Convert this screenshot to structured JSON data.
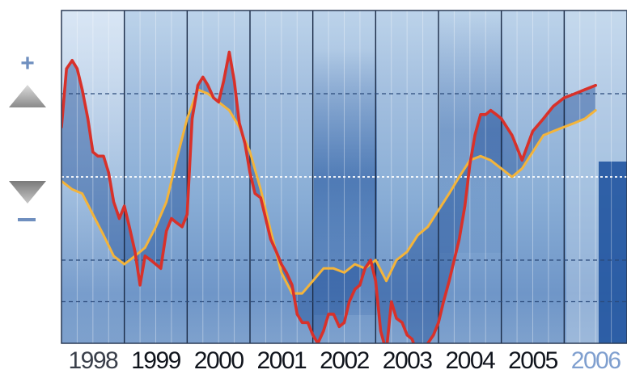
{
  "chart_data": {
    "type": "line",
    "title": "",
    "xlabel": "",
    "ylabel": "",
    "categories": [
      "1998",
      "1999",
      "2000",
      "2001",
      "2002",
      "2003",
      "2004",
      "2005",
      "2006"
    ],
    "x_range": [
      1998,
      2007
    ],
    "y_range": [
      -4,
      4
    ],
    "grid": true,
    "reference_line": 0,
    "indicator_labels": {
      "up": "+",
      "down": "–"
    },
    "series": [
      {
        "color": "#d8312a",
        "x": [
          1998.0,
          1998.08,
          1998.17,
          1998.25,
          1998.33,
          1998.42,
          1998.5,
          1998.58,
          1998.67,
          1998.75,
          1998.83,
          1998.92,
          1999.0,
          1999.08,
          1999.17,
          1999.25,
          1999.33,
          1999.42,
          1999.5,
          1999.58,
          1999.67,
          1999.75,
          1999.83,
          1999.92,
          2000.0,
          2000.08,
          2000.17,
          2000.25,
          2000.33,
          2000.42,
          2000.5,
          2000.58,
          2000.67,
          2000.75,
          2000.83,
          2000.92,
          2001.0,
          2001.08,
          2001.17,
          2001.25,
          2001.33,
          2001.42,
          2001.5,
          2001.58,
          2001.67,
          2001.75,
          2001.83,
          2001.92,
          2002.0,
          2002.08,
          2002.17,
          2002.25,
          2002.33,
          2002.42,
          2002.5,
          2002.58,
          2002.67,
          2002.75,
          2002.83,
          2002.92,
          2003.0,
          2003.08,
          2003.17,
          2003.25,
          2003.33,
          2003.42,
          2003.5,
          2003.58,
          2003.67,
          2003.75,
          2003.83,
          2003.92,
          2004.0,
          2004.08,
          2004.17,
          2004.25,
          2004.33,
          2004.42,
          2004.5,
          2004.58,
          2004.67,
          2004.75,
          2004.83,
          2004.92,
          2005.0,
          2005.17,
          2005.33,
          2005.5,
          2005.67,
          2005.83,
          2006.0,
          2006.17,
          2006.33,
          2006.5
        ],
        "y": [
          1.2,
          2.6,
          2.8,
          2.6,
          2.1,
          1.4,
          0.6,
          0.5,
          0.5,
          0.1,
          -0.6,
          -1.0,
          -0.7,
          -1.2,
          -1.8,
          -2.6,
          -1.9,
          -2.0,
          -2.1,
          -2.2,
          -1.3,
          -1.0,
          -1.1,
          -1.2,
          -0.9,
          1.4,
          2.2,
          2.4,
          2.2,
          1.9,
          1.8,
          2.3,
          3.0,
          2.3,
          1.3,
          0.8,
          0.1,
          -0.4,
          -0.5,
          -1.0,
          -1.5,
          -1.8,
          -2.1,
          -2.3,
          -2.6,
          -3.3,
          -3.5,
          -3.5,
          -3.8,
          -4.0,
          -3.7,
          -3.3,
          -3.3,
          -3.6,
          -3.5,
          -3.0,
          -2.7,
          -2.6,
          -2.2,
          -2.0,
          -2.5,
          -3.7,
          -4.2,
          -3.0,
          -3.4,
          -3.5,
          -3.8,
          -3.9,
          -4.3,
          -4.2,
          -4.0,
          -3.8,
          -3.5,
          -3.0,
          -2.5,
          -2.0,
          -1.5,
          -0.7,
          0.3,
          1.0,
          1.5,
          1.5,
          1.6,
          1.5,
          1.4,
          1.0,
          0.4,
          1.1,
          1.4,
          1.7,
          1.9,
          2.0,
          2.1,
          2.2
        ]
      },
      {
        "color": "#f4b43a",
        "x": [
          1998.0,
          1998.17,
          1998.33,
          1998.5,
          1998.67,
          1998.83,
          1999.0,
          1999.17,
          1999.33,
          1999.5,
          1999.67,
          1999.83,
          2000.0,
          2000.17,
          2000.33,
          2000.5,
          2000.67,
          2000.83,
          2001.0,
          2001.17,
          2001.33,
          2001.5,
          2001.67,
          2001.83,
          2002.0,
          2002.17,
          2002.33,
          2002.5,
          2002.67,
          2002.83,
          2003.0,
          2003.17,
          2003.33,
          2003.5,
          2003.67,
          2003.83,
          2004.0,
          2004.17,
          2004.33,
          2004.5,
          2004.67,
          2004.83,
          2005.0,
          2005.17,
          2005.33,
          2005.5,
          2005.67,
          2005.83,
          2006.0,
          2006.17,
          2006.33,
          2006.5
        ],
        "y": [
          -0.1,
          -0.3,
          -0.4,
          -0.9,
          -1.4,
          -1.9,
          -2.1,
          -1.9,
          -1.7,
          -1.2,
          -0.6,
          0.4,
          1.4,
          2.1,
          2.0,
          1.8,
          1.6,
          1.2,
          0.6,
          -0.3,
          -1.3,
          -2.3,
          -2.8,
          -2.8,
          -2.5,
          -2.2,
          -2.2,
          -2.3,
          -2.1,
          -2.2,
          -2.0,
          -2.5,
          -2.0,
          -1.8,
          -1.4,
          -1.2,
          -0.8,
          -0.4,
          0.0,
          0.4,
          0.5,
          0.4,
          0.2,
          0.0,
          0.2,
          0.6,
          1.0,
          1.1,
          1.2,
          1.3,
          1.4,
          1.6
        ]
      }
    ]
  }
}
